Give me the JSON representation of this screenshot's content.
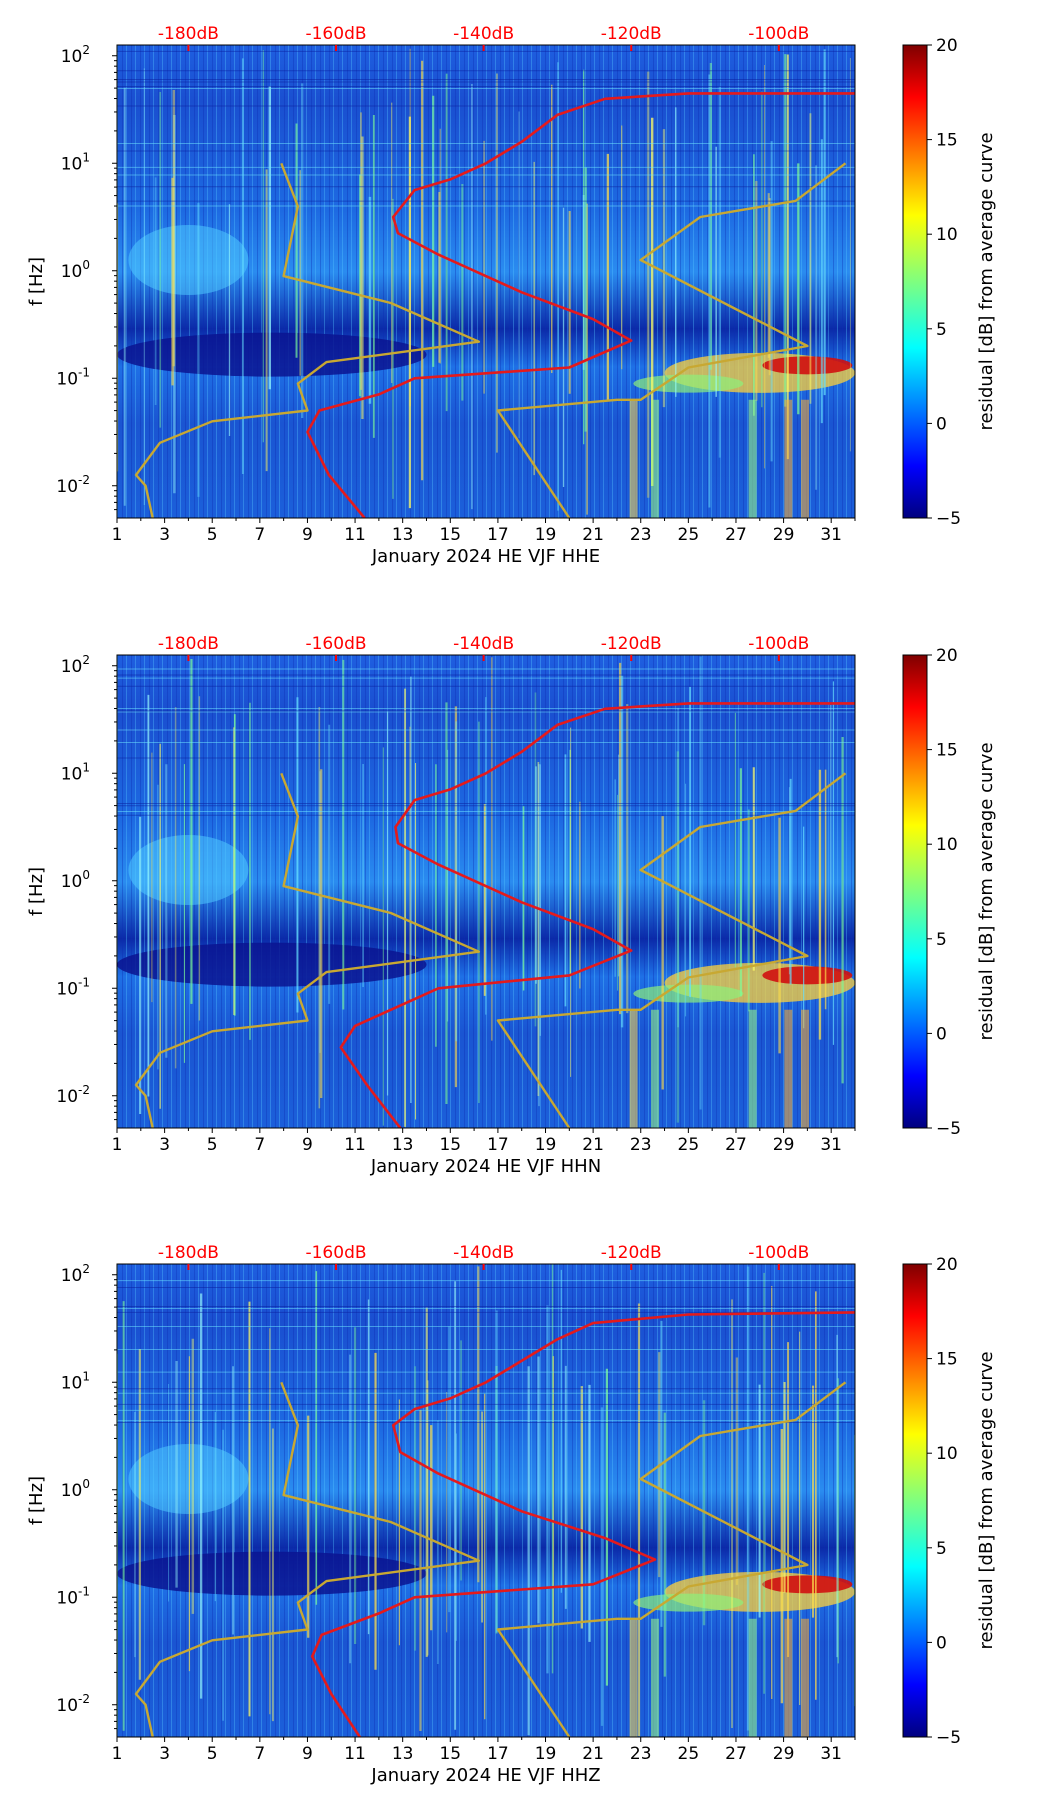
{
  "chart_data": [
    {
      "type": "heatmap",
      "xlabel": "January 2024 HE VJF  HHE",
      "ylabel": "f [Hz]",
      "colorbar_label": "residual [dB] from average curve",
      "xlim": [
        1,
        32
      ],
      "xticks": [
        1,
        3,
        5,
        7,
        9,
        11,
        13,
        15,
        17,
        19,
        21,
        23,
        25,
        27,
        29,
        31
      ],
      "ylim_log10": [
        -2.3,
        2.1
      ],
      "yticks": [
        {
          "label": "10",
          "exp": "-2",
          "log10": -2
        },
        {
          "label": "10",
          "exp": "-1",
          "log10": -1
        },
        {
          "label": "10",
          "exp": "0",
          "log10": 0
        },
        {
          "label": "10",
          "exp": "1",
          "log10": 1
        },
        {
          "label": "10",
          "exp": "2",
          "log10": 2
        }
      ],
      "top_db_labels": [
        {
          "text": "-180dB",
          "x": 4
        },
        {
          "text": "-160dB",
          "x": 10.2
        },
        {
          "text": "-140dB",
          "x": 16.4
        },
        {
          "text": "-120dB",
          "x": 22.6
        },
        {
          "text": "-100dB",
          "x": 28.8
        }
      ],
      "colorbar_range": [
        -5,
        20
      ],
      "colorbar_ticks": [
        "20",
        "15",
        "10",
        "5",
        "0",
        "−5"
      ],
      "series": [
        {
          "name": "average noise curve",
          "color": "#e41a1c",
          "points": [
            [
              11.4,
              -2.3
            ],
            [
              9.9,
              -1.9
            ],
            [
              9,
              -1.5
            ],
            [
              9.5,
              -1.3
            ],
            [
              12,
              -1.15
            ],
            [
              13.5,
              -1.0
            ],
            [
              20,
              -0.9
            ],
            [
              22.6,
              -0.65
            ],
            [
              21,
              -0.45
            ],
            [
              18,
              -0.2
            ],
            [
              14.5,
              0.15
            ],
            [
              12.8,
              0.35
            ],
            [
              12.6,
              0.5
            ],
            [
              13.5,
              0.75
            ],
            [
              15,
              0.85
            ],
            [
              16.5,
              1.0
            ],
            [
              18,
              1.2
            ],
            [
              19.5,
              1.45
            ],
            [
              21.5,
              1.6
            ],
            [
              25,
              1.65
            ],
            [
              32,
              1.65
            ]
          ]
        },
        {
          "name": "model noise curves",
          "color": "#c8a832",
          "points": [
            [
              2.5,
              -2.3
            ],
            [
              2.2,
              -2.0
            ],
            [
              1.8,
              -1.9
            ],
            [
              2.8,
              -1.6
            ],
            [
              5,
              -1.4
            ],
            [
              9,
              -1.3
            ],
            [
              8.6,
              -1.05
            ],
            [
              9.8,
              -0.85
            ],
            [
              16.2,
              -0.66
            ],
            [
              12.5,
              -0.3
            ],
            [
              8,
              -0.05
            ],
            [
              8.6,
              0.6
            ],
            [
              7.9,
              1.0
            ]
          ]
        },
        {
          "name": "model noise curves",
          "color": "#c8a832",
          "points": [
            [
              20,
              -2.3
            ],
            [
              17,
              -1.3
            ],
            [
              22,
              -1.2
            ],
            [
              23,
              -1.2
            ],
            [
              25,
              -0.9
            ],
            [
              30,
              -0.7
            ],
            [
              23,
              0.1
            ],
            [
              25.5,
              0.5
            ],
            [
              29.5,
              0.65
            ],
            [
              31.6,
              1.0
            ]
          ]
        }
      ]
    },
    {
      "type": "heatmap",
      "xlabel": "January 2024 HE VJF  HHN",
      "ylabel": "f [Hz]",
      "colorbar_label": "residual [dB] from average curve",
      "xlim": [
        1,
        32
      ],
      "xticks": [
        1,
        3,
        5,
        7,
        9,
        11,
        13,
        15,
        17,
        19,
        21,
        23,
        25,
        27,
        29,
        31
      ],
      "ylim_log10": [
        -2.3,
        2.1
      ],
      "yticks": [
        {
          "label": "10",
          "exp": "-2",
          "log10": -2
        },
        {
          "label": "10",
          "exp": "-1",
          "log10": -1
        },
        {
          "label": "10",
          "exp": "0",
          "log10": 0
        },
        {
          "label": "10",
          "exp": "1",
          "log10": 1
        },
        {
          "label": "10",
          "exp": "2",
          "log10": 2
        }
      ],
      "top_db_labels": [
        {
          "text": "-180dB",
          "x": 4
        },
        {
          "text": "-160dB",
          "x": 10.2
        },
        {
          "text": "-140dB",
          "x": 16.4
        },
        {
          "text": "-120dB",
          "x": 22.6
        },
        {
          "text": "-100dB",
          "x": 28.8
        }
      ],
      "colorbar_range": [
        -5,
        20
      ],
      "colorbar_ticks": [
        "20",
        "15",
        "10",
        "5",
        "0",
        "−5"
      ],
      "series": [
        {
          "name": "average noise curve",
          "color": "#e41a1c",
          "points": [
            [
              12.9,
              -2.3
            ],
            [
              11.5,
              -1.9
            ],
            [
              10.4,
              -1.55
            ],
            [
              11,
              -1.35
            ],
            [
              13,
              -1.15
            ],
            [
              14.5,
              -1.0
            ],
            [
              20,
              -0.88
            ],
            [
              22.6,
              -0.65
            ],
            [
              21,
              -0.45
            ],
            [
              18,
              -0.2
            ],
            [
              14.5,
              0.15
            ],
            [
              12.8,
              0.35
            ],
            [
              12.7,
              0.5
            ],
            [
              13.5,
              0.75
            ],
            [
              15,
              0.85
            ],
            [
              16.5,
              1.0
            ],
            [
              18,
              1.2
            ],
            [
              19.5,
              1.45
            ],
            [
              21.5,
              1.6
            ],
            [
              25,
              1.65
            ],
            [
              32,
              1.65
            ]
          ]
        },
        {
          "name": "model noise curves",
          "color": "#c8a832",
          "points": [
            [
              2.5,
              -2.3
            ],
            [
              2.2,
              -2.0
            ],
            [
              1.8,
              -1.9
            ],
            [
              2.8,
              -1.6
            ],
            [
              5,
              -1.4
            ],
            [
              9,
              -1.3
            ],
            [
              8.6,
              -1.05
            ],
            [
              9.8,
              -0.85
            ],
            [
              16.2,
              -0.66
            ],
            [
              12.5,
              -0.3
            ],
            [
              8,
              -0.05
            ],
            [
              8.6,
              0.6
            ],
            [
              7.9,
              1.0
            ]
          ]
        },
        {
          "name": "model noise curves",
          "color": "#c8a832",
          "points": [
            [
              20,
              -2.3
            ],
            [
              17,
              -1.3
            ],
            [
              22,
              -1.2
            ],
            [
              23,
              -1.2
            ],
            [
              25,
              -0.9
            ],
            [
              30,
              -0.7
            ],
            [
              23,
              0.1
            ],
            [
              25.5,
              0.5
            ],
            [
              29.5,
              0.65
            ],
            [
              31.6,
              1.0
            ]
          ]
        }
      ]
    },
    {
      "type": "heatmap",
      "xlabel": "January 2024 HE VJF  HHZ",
      "ylabel": "f [Hz]",
      "colorbar_label": "residual [dB] from average curve",
      "xlim": [
        1,
        32
      ],
      "xticks": [
        1,
        3,
        5,
        7,
        9,
        11,
        13,
        15,
        17,
        19,
        21,
        23,
        25,
        27,
        29,
        31
      ],
      "ylim_log10": [
        -2.3,
        2.1
      ],
      "yticks": [
        {
          "label": "10",
          "exp": "-2",
          "log10": -2
        },
        {
          "label": "10",
          "exp": "-1",
          "log10": -1
        },
        {
          "label": "10",
          "exp": "0",
          "log10": 0
        },
        {
          "label": "10",
          "exp": "1",
          "log10": 1
        },
        {
          "label": "10",
          "exp": "2",
          "log10": 2
        }
      ],
      "top_db_labels": [
        {
          "text": "-180dB",
          "x": 4
        },
        {
          "text": "-160dB",
          "x": 10.2
        },
        {
          "text": "-140dB",
          "x": 16.4
        },
        {
          "text": "-120dB",
          "x": 22.6
        },
        {
          "text": "-100dB",
          "x": 28.8
        }
      ],
      "colorbar_range": [
        -5,
        20
      ],
      "colorbar_ticks": [
        "20",
        "15",
        "10",
        "5",
        "0",
        "−5"
      ],
      "series": [
        {
          "name": "average noise curve",
          "color": "#e41a1c",
          "points": [
            [
              11.2,
              -2.3
            ],
            [
              10,
              -1.9
            ],
            [
              9.2,
              -1.55
            ],
            [
              9.6,
              -1.35
            ],
            [
              12,
              -1.15
            ],
            [
              13.5,
              -1.0
            ],
            [
              21,
              -0.88
            ],
            [
              23.6,
              -0.65
            ],
            [
              21.5,
              -0.45
            ],
            [
              18,
              -0.2
            ],
            [
              14.5,
              0.15
            ],
            [
              12.9,
              0.35
            ],
            [
              12.6,
              0.6
            ],
            [
              13.5,
              0.75
            ],
            [
              15,
              0.85
            ],
            [
              16.5,
              1.0
            ],
            [
              18,
              1.2
            ],
            [
              19.5,
              1.4
            ],
            [
              21,
              1.55
            ],
            [
              25,
              1.63
            ],
            [
              32,
              1.65
            ]
          ]
        },
        {
          "name": "model noise curves",
          "color": "#c8a832",
          "points": [
            [
              2.5,
              -2.3
            ],
            [
              2.2,
              -2.0
            ],
            [
              1.8,
              -1.9
            ],
            [
              2.8,
              -1.6
            ],
            [
              5,
              -1.4
            ],
            [
              9,
              -1.3
            ],
            [
              8.6,
              -1.05
            ],
            [
              9.8,
              -0.85
            ],
            [
              16.2,
              -0.66
            ],
            [
              12.5,
              -0.3
            ],
            [
              8,
              -0.05
            ],
            [
              8.6,
              0.6
            ],
            [
              7.9,
              1.0
            ]
          ]
        },
        {
          "name": "model noise curves",
          "color": "#c8a832",
          "points": [
            [
              20,
              -2.3
            ],
            [
              17,
              -1.3
            ],
            [
              22,
              -1.2
            ],
            [
              23,
              -1.2
            ],
            [
              25,
              -0.9
            ],
            [
              30,
              -0.7
            ],
            [
              23,
              0.1
            ],
            [
              25.5,
              0.5
            ],
            [
              29.5,
              0.65
            ],
            [
              31.6,
              1.0
            ]
          ]
        }
      ]
    }
  ]
}
